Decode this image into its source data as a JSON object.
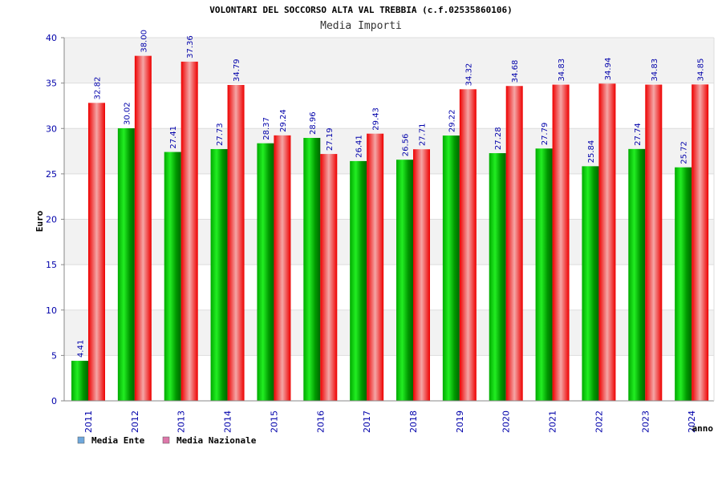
{
  "chart_data": {
    "type": "bar",
    "title": "VOLONTARI DEL SOCCORSO ALTA VAL TREBBIA (c.f.02535860106)",
    "subtitle": "Media Importi",
    "xlabel": "anno",
    "ylabel": "Euro",
    "ylim": [
      0,
      40
    ],
    "yticks": [
      0,
      5,
      10,
      15,
      20,
      25,
      30,
      35,
      40
    ],
    "grid": true,
    "legend_position": "bottom-left",
    "categories": [
      "2011",
      "2012",
      "2013",
      "2014",
      "2015",
      "2016",
      "2017",
      "2018",
      "2019",
      "2020",
      "2021",
      "2022",
      "2023",
      "2024"
    ],
    "series": [
      {
        "name": "Media Ente",
        "color": "#00aa00",
        "legend_color": "#6fa8dc",
        "values": [
          4.41,
          30.02,
          27.41,
          27.73,
          28.37,
          28.96,
          26.41,
          26.56,
          29.22,
          27.28,
          27.79,
          25.84,
          27.74,
          25.72
        ],
        "labels": [
          "4.41",
          "30.02",
          "27.41",
          "27.73",
          "28.37",
          "28.96",
          "26.41",
          "26.56",
          "29.22",
          "27.28",
          "27.79",
          "25.84",
          "27.74",
          "25.72"
        ]
      },
      {
        "name": "Media Nazionale",
        "color": "#ee1111",
        "legend_color": "#dd77aa",
        "values": [
          32.82,
          38.0,
          37.36,
          34.79,
          29.24,
          27.19,
          29.43,
          27.71,
          34.32,
          34.68,
          34.83,
          34.94,
          34.83,
          34.85
        ],
        "labels": [
          "32.82",
          "38.00",
          "37.36",
          "34.79",
          "29.24",
          "27.19",
          "29.43",
          "27.71",
          "34.32",
          "34.68",
          "34.83",
          "34.94",
          "34.83",
          "34.85"
        ]
      }
    ]
  }
}
